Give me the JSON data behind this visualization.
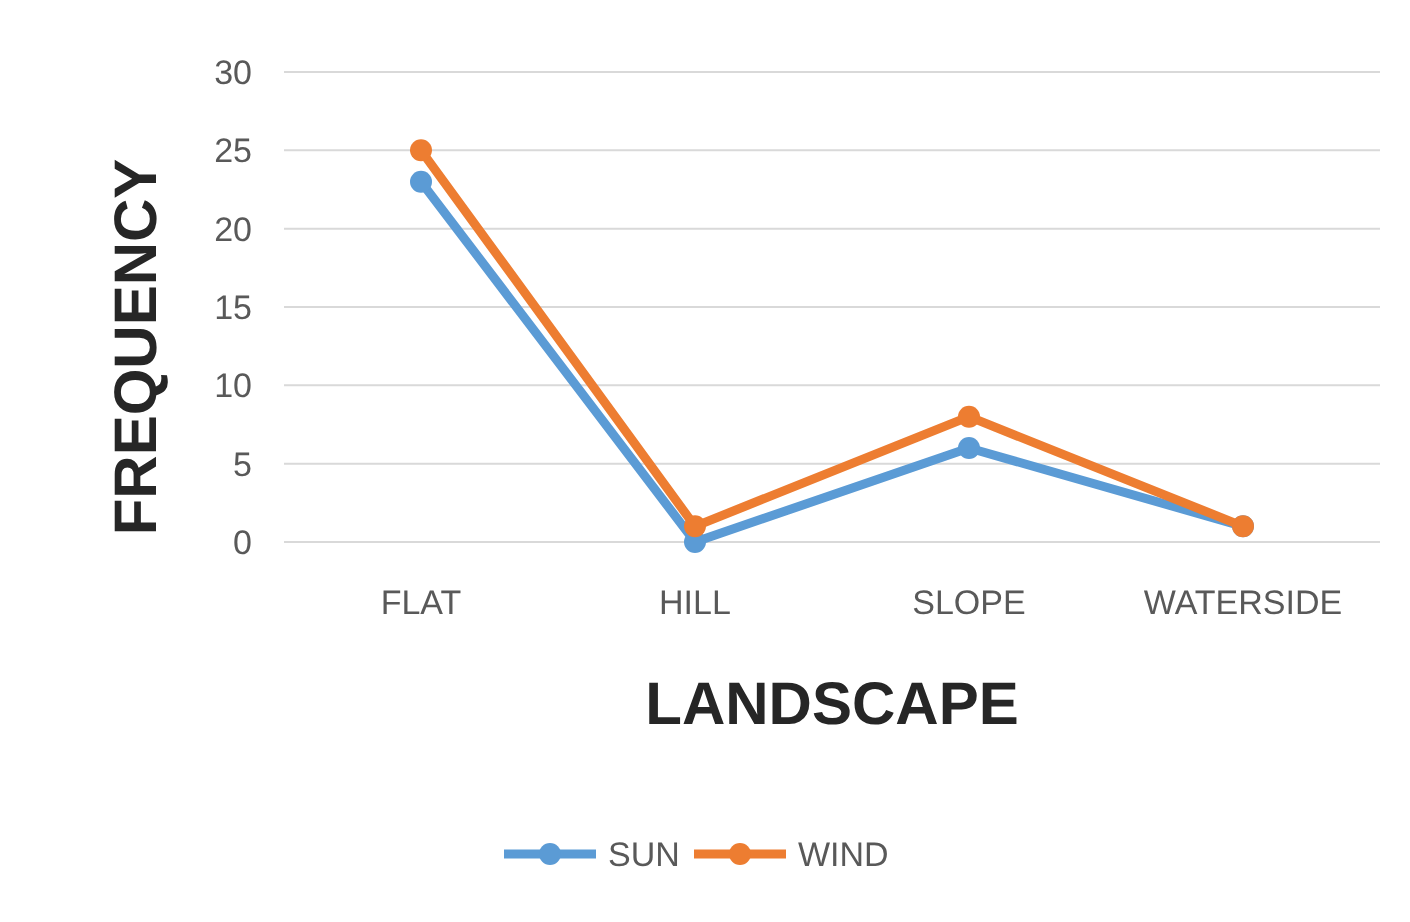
{
  "chart_data": {
    "type": "line",
    "xlabel": "LANDSCAPE",
    "ylabel": "FREQUENCY",
    "categories": [
      "FLAT",
      "HILL",
      "SLOPE",
      "WATERSIDE"
    ],
    "series": [
      {
        "name": "SUN",
        "color": "#5b9bd5",
        "values": [
          23,
          0,
          6,
          1
        ]
      },
      {
        "name": "WIND",
        "color": "#ed7d31",
        "values": [
          25,
          1,
          8,
          1
        ]
      }
    ],
    "ylim": [
      0,
      30
    ],
    "yticks": [
      0,
      5,
      10,
      15,
      20,
      25,
      30
    ],
    "grid": "y",
    "legend": "bottom",
    "marker": "circle",
    "line_style": "solid"
  }
}
